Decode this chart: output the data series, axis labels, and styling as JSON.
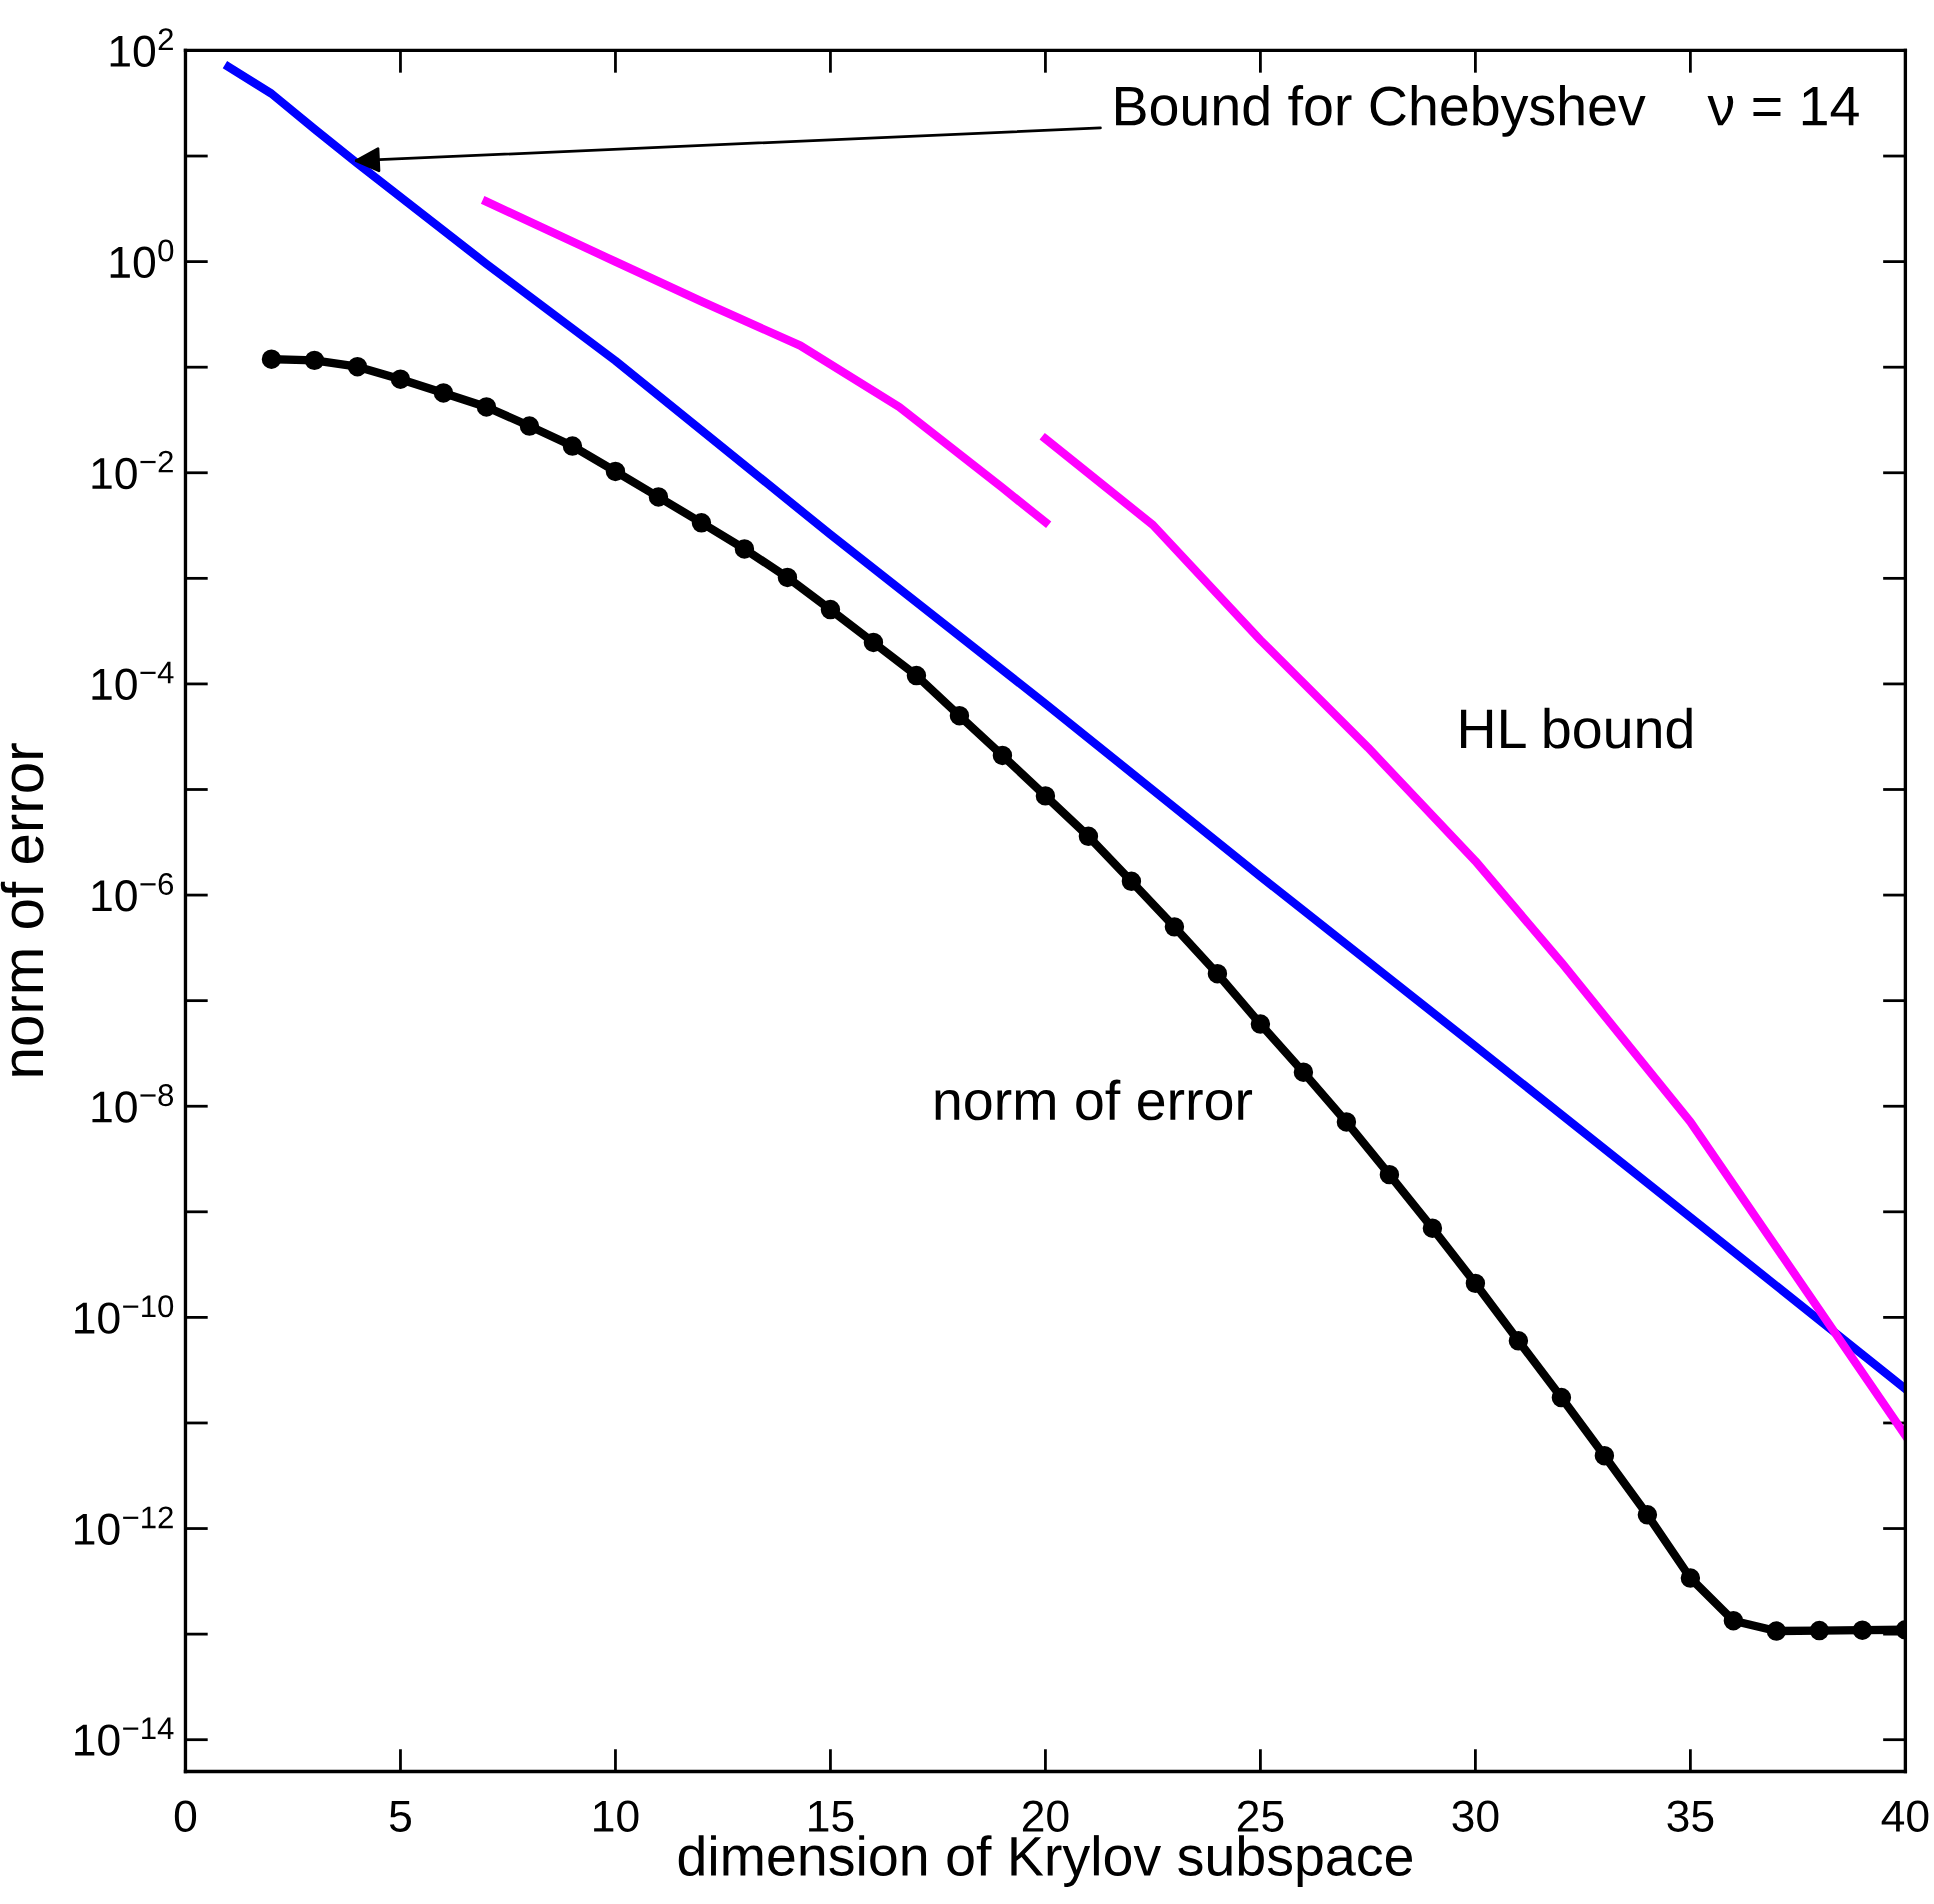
{
  "chart_data": {
    "type": "line",
    "xlabel": "dimension of Krylov subspace",
    "ylabel": "norm of error",
    "log": "y",
    "xlim": [
      0,
      40
    ],
    "ylim": [
      5e-15,
      100
    ],
    "xticks": [
      0,
      5,
      10,
      15,
      20,
      25,
      30,
      35,
      40
    ],
    "yticks": [
      {
        "value": 100,
        "label": "10$^{2}$"
      },
      {
        "value": 10,
        "label": null
      },
      {
        "value": 1,
        "label": "10$^{0}$"
      },
      {
        "value": 0.1,
        "label": null
      },
      {
        "value": 0.01,
        "label": "10$^{−2}$"
      },
      {
        "value": 0.001,
        "label": null
      },
      {
        "value": 0.0001,
        "label": "10$^{−4}$"
      },
      {
        "value": 1e-05,
        "label": null
      },
      {
        "value": 1e-06,
        "label": "10$^{−6}$"
      },
      {
        "value": 1e-07,
        "label": null
      },
      {
        "value": 1e-08,
        "label": "10$^{−8}$"
      },
      {
        "value": 1e-09,
        "label": null
      },
      {
        "value": 1e-10,
        "label": "10$^{−10}$"
      },
      {
        "value": 1e-11,
        "label": null
      },
      {
        "value": 1e-12,
        "label": "10$^{−12}$"
      },
      {
        "value": 1e-13,
        "label": null
      },
      {
        "value": 1e-14,
        "label": "10$^{−14}$"
      }
    ],
    "grid": false,
    "legend": false,
    "series": [
      {
        "color": "#0000ff",
        "marker": "none",
        "x": [
          1,
          2,
          3,
          4,
          7,
          10,
          15,
          20,
          25,
          30,
          35,
          40
        ],
        "values": [
          70,
          39,
          18,
          8.5,
          0.95,
          0.115,
          0.0026,
          6.5e-05,
          1.5e-06,
          3.7e-08,
          8.9e-10,
          2.1e-11
        ]
      },
      {
        "color": "#ff00ff",
        "marker": "none",
        "x": [
          7,
          10,
          12,
          14.3,
          16.6,
          19,
          20
        ],
        "values": [
          3.7,
          1.0,
          0.42,
          0.16,
          0.042,
          0.0072,
          0.0034
        ]
      },
      {
        "color": "#ff00ff",
        "marker": "none",
        "x": [
          20,
          22.5,
          25,
          27.5,
          30,
          32,
          35,
          38.3,
          40
        ],
        "values": [
          0.021,
          0.0032,
          0.00026,
          2.5e-05,
          2.1e-06,
          2.3e-07,
          7.1e-09,
          7.8e-11,
          7.6e-12
        ]
      },
      {
        "color": "#000000",
        "marker": "circle",
        "x": [
          2,
          3,
          4,
          5,
          6,
          7,
          8,
          9,
          10,
          11,
          12,
          13,
          14,
          15,
          16,
          17,
          18,
          19,
          20,
          21,
          22,
          23,
          24,
          25,
          26,
          27,
          28,
          29,
          30,
          31,
          32,
          33,
          34,
          35,
          36,
          37,
          38,
          39,
          40
        ],
        "values": [
          0.119,
          0.116,
          0.101,
          0.077,
          0.057,
          0.042,
          0.0277,
          0.0179,
          0.0103,
          0.0059,
          0.00336,
          0.0019,
          0.00102,
          0.000506,
          0.000247,
          0.00012,
          5e-05,
          2.1e-05,
          8.7e-06,
          3.6e-06,
          1.35e-06,
          5e-07,
          1.8e-07,
          6e-08,
          2.1e-08,
          7.1e-09,
          2.25e-09,
          7e-10,
          2.1e-10,
          6e-11,
          1.74e-11,
          4.9e-12,
          1.35e-12,
          3.4e-13,
          1.34e-13,
          1.07e-13,
          1.08e-13,
          1.09e-13,
          1.1e-13
        ]
      }
    ],
    "annotations": [
      {
        "text": "Bound for Chebyshev    ν = 14",
        "x": 3.9,
        "y": 9
      },
      "HL bound",
      "norm of error"
    ]
  }
}
